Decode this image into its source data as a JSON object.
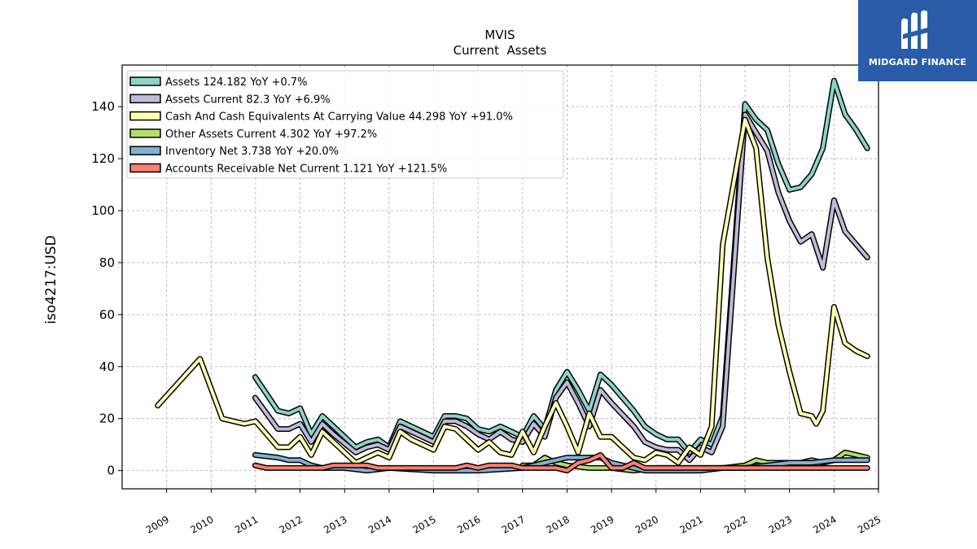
{
  "brand": {
    "name": "MIDGARD FINANCE",
    "color": "#2a5caa"
  },
  "chart_data": {
    "type": "line",
    "title": "MVIS",
    "subtitle": "Current  Assets",
    "xlabel": "",
    "ylabel": "iso4217:USD",
    "xlim": [
      2008.0,
      2025.0
    ],
    "ylim": [
      -7,
      156
    ],
    "grid": true,
    "legend_position": "top-left",
    "x_ticks": [
      "2009",
      "2010",
      "2011",
      "2012",
      "2013",
      "2014",
      "2015",
      "2016",
      "2017",
      "2018",
      "2019",
      "2020",
      "2021",
      "2022",
      "2023",
      "2024",
      "2025"
    ],
    "y_ticks": [
      "0",
      "20",
      "40",
      "60",
      "80",
      "100",
      "120",
      "140"
    ],
    "series": [
      {
        "name": "Assets",
        "legend": "Assets  124.182 YoY +0.7%",
        "color": "#8dd3c7",
        "points": [
          [
            2010.99,
            36
          ],
          [
            2011.5,
            23
          ],
          [
            2011.75,
            22
          ],
          [
            2012.0,
            24
          ],
          [
            2012.25,
            14
          ],
          [
            2012.5,
            21
          ],
          [
            2012.75,
            17
          ],
          [
            2013.25,
            9
          ],
          [
            2013.5,
            11
          ],
          [
            2013.75,
            12
          ],
          [
            2014.0,
            9
          ],
          [
            2014.25,
            19
          ],
          [
            2014.5,
            17
          ],
          [
            2014.75,
            15
          ],
          [
            2015.0,
            13
          ],
          [
            2015.25,
            21
          ],
          [
            2015.5,
            21
          ],
          [
            2015.75,
            20
          ],
          [
            2016.0,
            16
          ],
          [
            2016.25,
            15
          ],
          [
            2016.5,
            17
          ],
          [
            2016.75,
            15
          ],
          [
            2017.0,
            13
          ],
          [
            2017.25,
            21
          ],
          [
            2017.5,
            16
          ],
          [
            2017.75,
            31
          ],
          [
            2018.0,
            38
          ],
          [
            2018.25,
            31
          ],
          [
            2018.5,
            23
          ],
          [
            2018.75,
            37
          ],
          [
            2019.0,
            33
          ],
          [
            2019.5,
            23
          ],
          [
            2019.75,
            17
          ],
          [
            2020.0,
            14
          ],
          [
            2020.25,
            12
          ],
          [
            2020.5,
            12
          ],
          [
            2020.75,
            7
          ],
          [
            2021.0,
            12
          ],
          [
            2021.25,
            10
          ],
          [
            2021.5,
            21
          ],
          [
            2022.0,
            141
          ],
          [
            2022.25,
            135
          ],
          [
            2022.5,
            131
          ],
          [
            2022.75,
            118
          ],
          [
            2023.0,
            108
          ],
          [
            2023.25,
            109
          ],
          [
            2023.5,
            114
          ],
          [
            2023.75,
            124
          ],
          [
            2024.0,
            150
          ],
          [
            2024.25,
            137
          ],
          [
            2024.5,
            131
          ],
          [
            2024.75,
            124
          ]
        ]
      },
      {
        "name": "Assets Current",
        "legend": "Assets Current  82.3 YoY +6.9%",
        "color": "#bebada",
        "points": [
          [
            2010.99,
            28
          ],
          [
            2011.5,
            16
          ],
          [
            2011.75,
            16
          ],
          [
            2012.0,
            18
          ],
          [
            2012.25,
            11
          ],
          [
            2012.5,
            18
          ],
          [
            2012.75,
            14
          ],
          [
            2013.25,
            7
          ],
          [
            2013.5,
            9
          ],
          [
            2013.75,
            10
          ],
          [
            2014.0,
            8
          ],
          [
            2014.25,
            17
          ],
          [
            2014.5,
            15
          ],
          [
            2014.75,
            13
          ],
          [
            2015.0,
            11
          ],
          [
            2015.25,
            19
          ],
          [
            2015.5,
            19
          ],
          [
            2015.75,
            17
          ],
          [
            2016.0,
            14
          ],
          [
            2016.25,
            12
          ],
          [
            2016.5,
            15
          ],
          [
            2016.75,
            12
          ],
          [
            2017.0,
            11
          ],
          [
            2017.25,
            18
          ],
          [
            2017.5,
            13
          ],
          [
            2017.75,
            28
          ],
          [
            2018.0,
            34
          ],
          [
            2018.25,
            26
          ],
          [
            2018.5,
            17
          ],
          [
            2018.75,
            31
          ],
          [
            2019.0,
            26
          ],
          [
            2019.5,
            17
          ],
          [
            2019.75,
            11
          ],
          [
            2020.0,
            9
          ],
          [
            2020.25,
            8
          ],
          [
            2020.5,
            8
          ],
          [
            2020.75,
            4
          ],
          [
            2021.0,
            9
          ],
          [
            2021.25,
            7
          ],
          [
            2021.5,
            17
          ],
          [
            2022.0,
            137
          ],
          [
            2022.25,
            130
          ],
          [
            2022.5,
            123
          ],
          [
            2022.75,
            107
          ],
          [
            2023.0,
            96
          ],
          [
            2023.25,
            88
          ],
          [
            2023.5,
            91
          ],
          [
            2023.75,
            78
          ],
          [
            2024.0,
            104
          ],
          [
            2024.25,
            92
          ],
          [
            2024.5,
            87
          ],
          [
            2024.75,
            82
          ]
        ]
      },
      {
        "name": "Cash And Cash Equivalents At Carrying Value",
        "legend": "Cash And Cash Equivalents At Carrying Value  44.298 YoY +91.0%",
        "color": "#ffffb3",
        "points": [
          [
            2008.8,
            25
          ],
          [
            2009.75,
            43
          ],
          [
            2010.25,
            20
          ],
          [
            2010.75,
            18
          ],
          [
            2011.0,
            19
          ],
          [
            2011.5,
            9
          ],
          [
            2011.75,
            9
          ],
          [
            2012.0,
            13
          ],
          [
            2012.25,
            6
          ],
          [
            2012.5,
            15
          ],
          [
            2012.75,
            11
          ],
          [
            2013.25,
            3
          ],
          [
            2013.5,
            5
          ],
          [
            2013.75,
            7
          ],
          [
            2014.0,
            5
          ],
          [
            2014.25,
            15
          ],
          [
            2014.5,
            12
          ],
          [
            2014.75,
            10
          ],
          [
            2015.0,
            8
          ],
          [
            2015.25,
            17
          ],
          [
            2015.5,
            16
          ],
          [
            2015.75,
            12
          ],
          [
            2016.0,
            8
          ],
          [
            2016.25,
            11
          ],
          [
            2016.5,
            7
          ],
          [
            2016.75,
            6
          ],
          [
            2017.0,
            15
          ],
          [
            2017.25,
            7
          ],
          [
            2017.5,
            17
          ],
          [
            2017.75,
            26
          ],
          [
            2018.0,
            17
          ],
          [
            2018.25,
            7
          ],
          [
            2018.5,
            22
          ],
          [
            2018.75,
            13
          ],
          [
            2019.0,
            13
          ],
          [
            2019.5,
            5
          ],
          [
            2019.75,
            4
          ],
          [
            2020.0,
            7
          ],
          [
            2020.25,
            6
          ],
          [
            2020.5,
            3
          ],
          [
            2020.75,
            9
          ],
          [
            2021.0,
            6
          ],
          [
            2021.25,
            17
          ],
          [
            2021.5,
            87
          ],
          [
            2022.0,
            135
          ],
          [
            2022.25,
            124
          ],
          [
            2022.5,
            82
          ],
          [
            2022.75,
            56
          ],
          [
            2023.0,
            38
          ],
          [
            2023.25,
            22
          ],
          [
            2023.5,
            21
          ],
          [
            2023.6,
            18
          ],
          [
            2023.75,
            23
          ],
          [
            2024.0,
            63
          ],
          [
            2024.25,
            49
          ],
          [
            2024.5,
            46
          ],
          [
            2024.75,
            44
          ]
        ]
      },
      {
        "name": "Other Assets Current",
        "legend": "Other Assets Current  4.302 YoY +97.2%",
        "color": "#b3de69",
        "points": [
          [
            2017.0,
            2
          ],
          [
            2017.25,
            2
          ],
          [
            2017.5,
            5
          ],
          [
            2017.75,
            3
          ],
          [
            2018.0,
            2
          ],
          [
            2018.5,
            1
          ],
          [
            2018.75,
            1
          ],
          [
            2019.0,
            1
          ],
          [
            2019.5,
            0
          ],
          [
            2020.0,
            1
          ],
          [
            2020.5,
            1
          ],
          [
            2021.0,
            1
          ],
          [
            2021.5,
            1
          ],
          [
            2022.0,
            2
          ],
          [
            2022.25,
            4
          ],
          [
            2022.5,
            3
          ],
          [
            2022.75,
            3
          ],
          [
            2023.0,
            3
          ],
          [
            2023.25,
            3
          ],
          [
            2023.5,
            4
          ],
          [
            2023.75,
            3
          ],
          [
            2024.0,
            4
          ],
          [
            2024.25,
            7
          ],
          [
            2024.5,
            6
          ],
          [
            2024.75,
            5
          ]
        ]
      },
      {
        "name": "Inventory Net",
        "legend": "Inventory Net  3.738 YoY +20.0%",
        "color": "#80b1d3",
        "points": [
          [
            2010.99,
            6
          ],
          [
            2011.5,
            5
          ],
          [
            2011.75,
            4
          ],
          [
            2012.0,
            4
          ],
          [
            2012.25,
            2
          ],
          [
            2012.5,
            1
          ],
          [
            2013.0,
            1
          ],
          [
            2013.5,
            0
          ],
          [
            2014.0,
            1
          ],
          [
            2015.0,
            0
          ],
          [
            2015.5,
            0
          ],
          [
            2016.0,
            0
          ],
          [
            2017.0,
            1
          ],
          [
            2017.25,
            2
          ],
          [
            2017.5,
            3
          ],
          [
            2017.75,
            4
          ],
          [
            2018.0,
            5
          ],
          [
            2018.25,
            5
          ],
          [
            2018.5,
            5
          ],
          [
            2018.75,
            5
          ],
          [
            2019.0,
            3
          ],
          [
            2019.5,
            1
          ],
          [
            2019.75,
            0
          ],
          [
            2020.0,
            0
          ],
          [
            2020.5,
            0
          ],
          [
            2021.0,
            0
          ],
          [
            2021.5,
            1
          ],
          [
            2022.0,
            1
          ],
          [
            2022.5,
            2
          ],
          [
            2023.0,
            3
          ],
          [
            2023.5,
            3
          ],
          [
            2024.0,
            4
          ],
          [
            2024.25,
            4
          ],
          [
            2024.5,
            4
          ],
          [
            2024.75,
            4
          ]
        ]
      },
      {
        "name": "Accounts Receivable Net Current",
        "legend": "Accounts Receivable Net Current  1.121 YoY +121.5%",
        "color": "#fb8072",
        "points": [
          [
            2010.99,
            2
          ],
          [
            2011.25,
            1
          ],
          [
            2011.5,
            1
          ],
          [
            2011.75,
            1
          ],
          [
            2012.0,
            1
          ],
          [
            2012.25,
            1
          ],
          [
            2012.5,
            1
          ],
          [
            2012.75,
            2
          ],
          [
            2013.25,
            2
          ],
          [
            2013.5,
            2
          ],
          [
            2013.75,
            1
          ],
          [
            2014.0,
            1
          ],
          [
            2014.25,
            1
          ],
          [
            2014.5,
            1
          ],
          [
            2014.75,
            1
          ],
          [
            2015.0,
            1
          ],
          [
            2015.25,
            1
          ],
          [
            2015.5,
            1
          ],
          [
            2015.75,
            2
          ],
          [
            2016.0,
            1
          ],
          [
            2016.25,
            2
          ],
          [
            2016.5,
            2
          ],
          [
            2016.75,
            2
          ],
          [
            2017.0,
            1
          ],
          [
            2017.25,
            1
          ],
          [
            2017.5,
            1
          ],
          [
            2017.75,
            1
          ],
          [
            2018.0,
            0
          ],
          [
            2018.25,
            3
          ],
          [
            2018.5,
            4
          ],
          [
            2018.75,
            6
          ],
          [
            2019.0,
            1
          ],
          [
            2019.25,
            1
          ],
          [
            2019.5,
            3
          ],
          [
            2019.75,
            1
          ],
          [
            2020.0,
            1
          ],
          [
            2020.5,
            1
          ],
          [
            2021.0,
            1
          ],
          [
            2021.5,
            1
          ],
          [
            2022.0,
            1
          ],
          [
            2022.5,
            1
          ],
          [
            2023.0,
            1
          ],
          [
            2023.5,
            1
          ],
          [
            2024.0,
            1
          ],
          [
            2024.5,
            1
          ],
          [
            2024.75,
            1
          ]
        ]
      }
    ]
  }
}
